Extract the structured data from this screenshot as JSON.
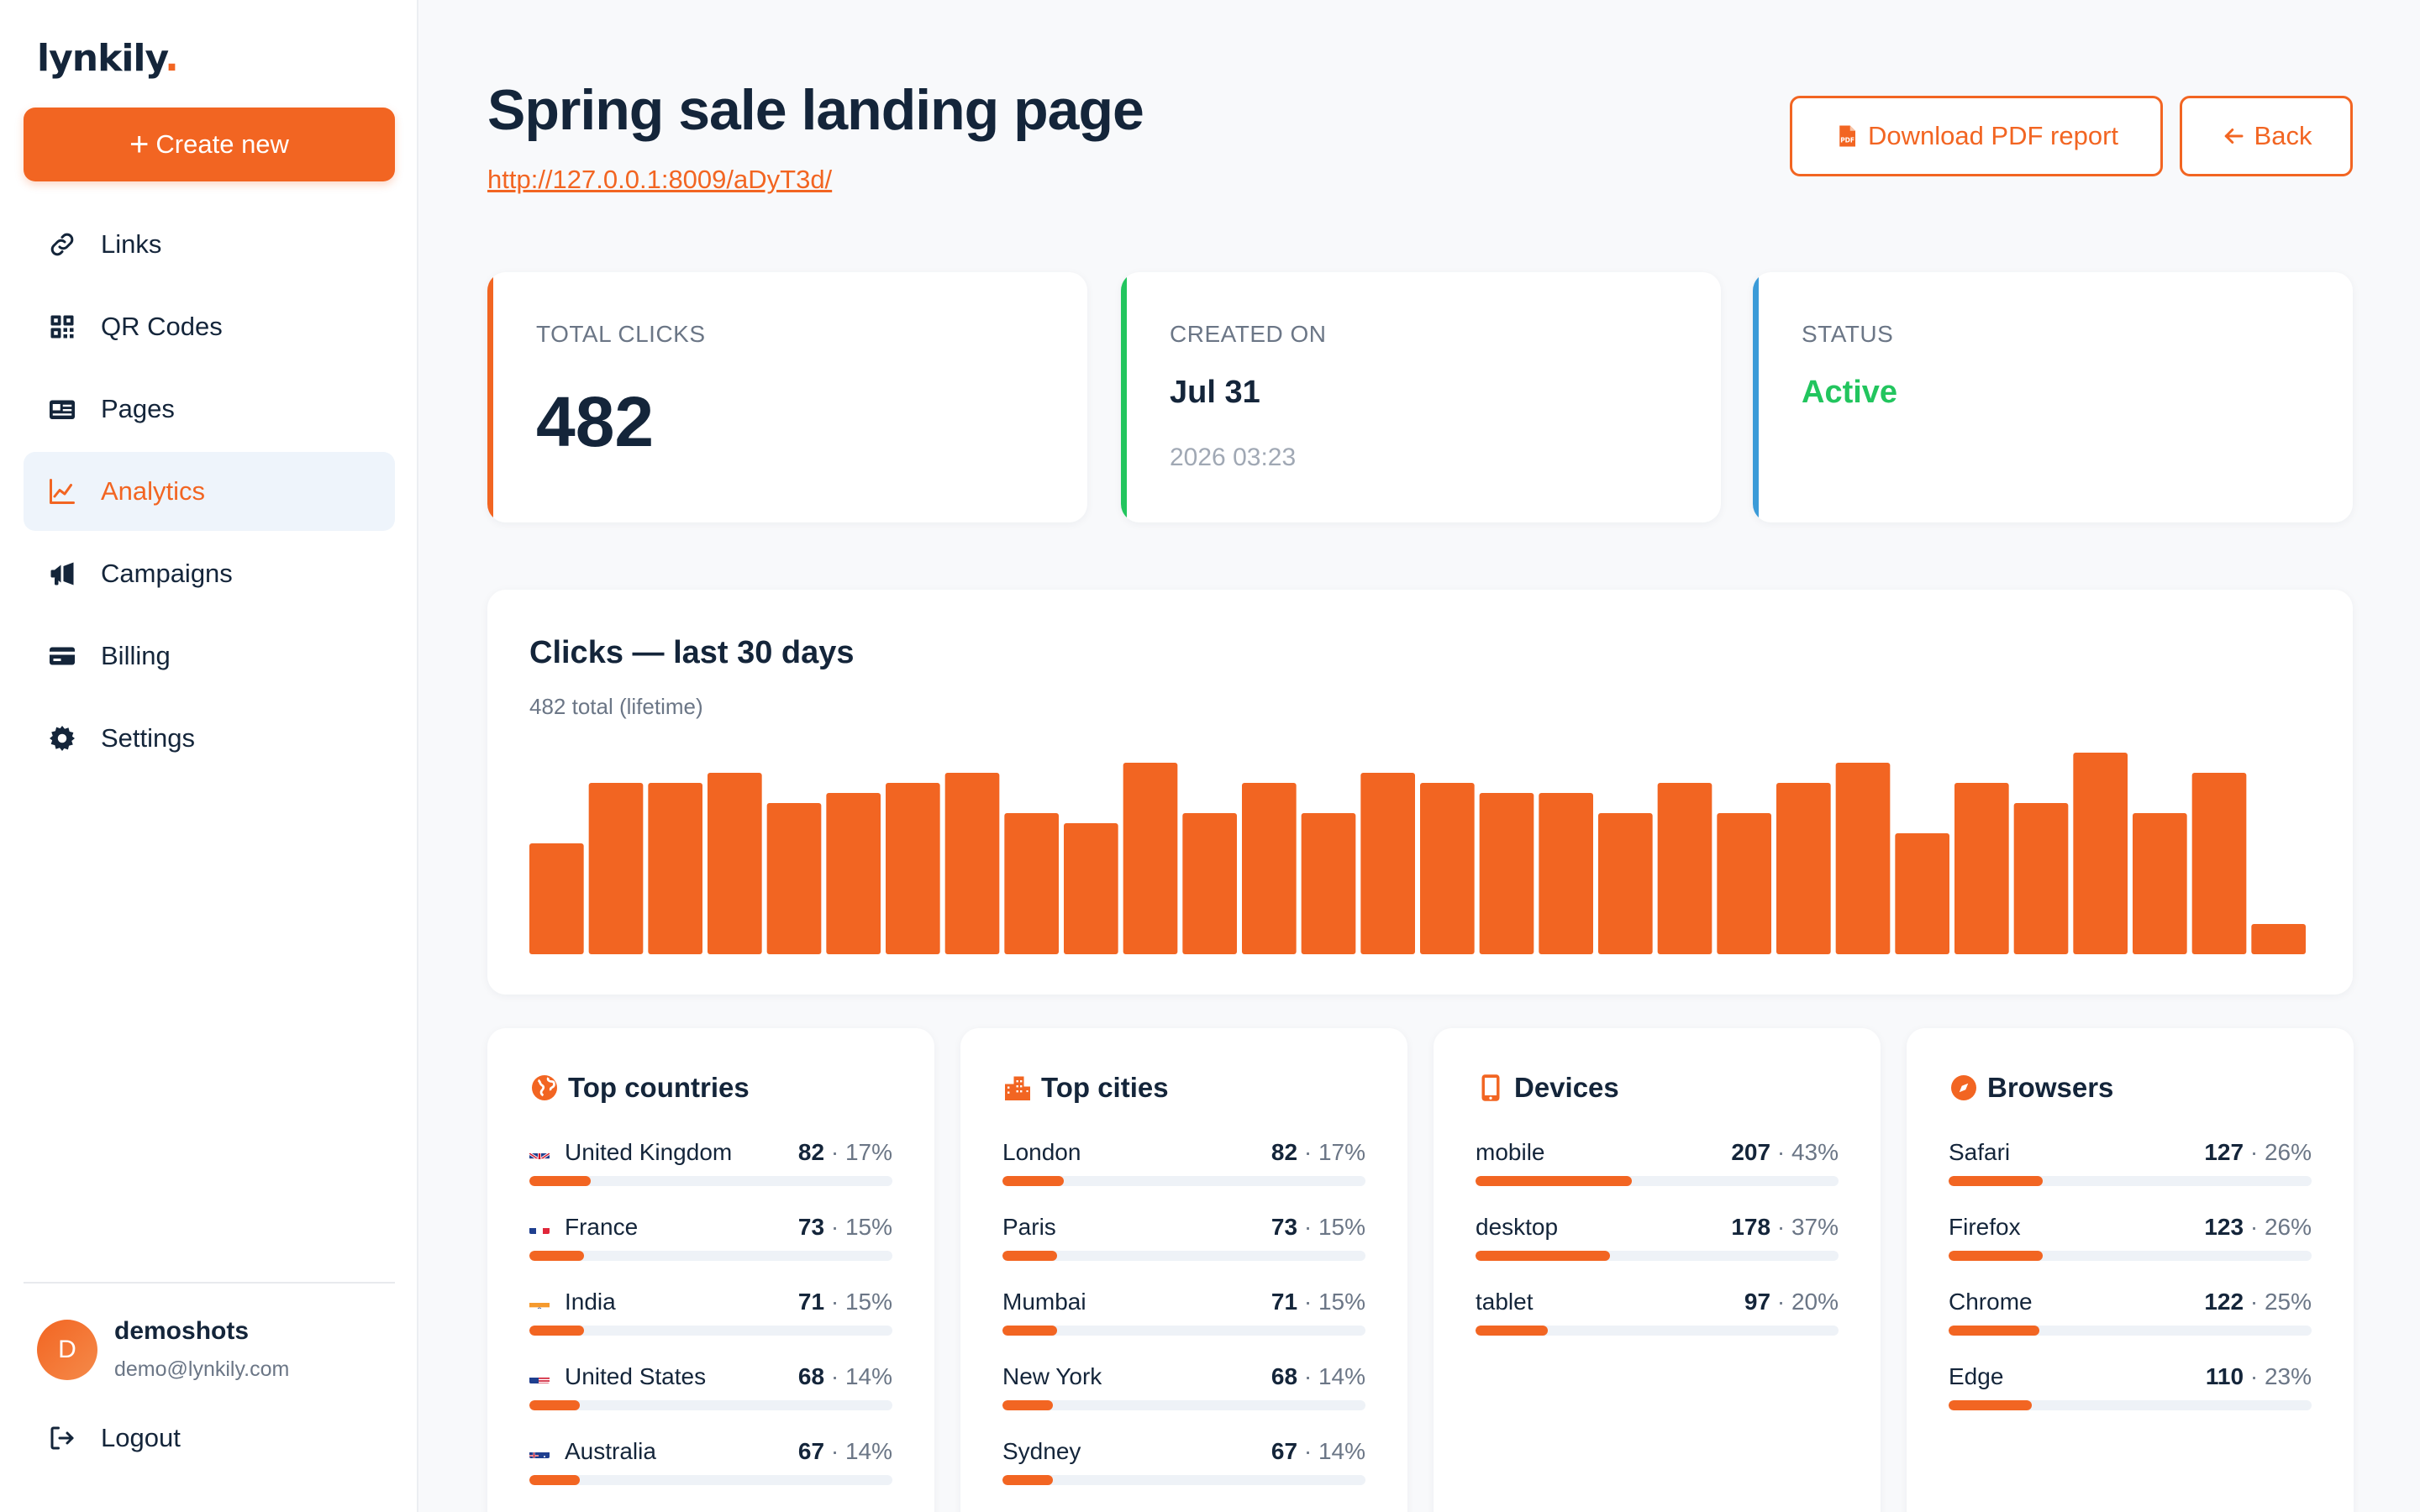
{
  "brand": {
    "name": "lynkily",
    "dot": "."
  },
  "sidebar": {
    "create_label": "Create new",
    "items": [
      {
        "label": "Links",
        "icon": "link-icon",
        "active": false
      },
      {
        "label": "QR Codes",
        "icon": "qr-code-icon",
        "active": false
      },
      {
        "label": "Pages",
        "icon": "pages-icon",
        "active": false
      },
      {
        "label": "Analytics",
        "icon": "analytics-chart-icon",
        "active": true
      },
      {
        "label": "Campaigns",
        "icon": "megaphone-icon",
        "active": false
      },
      {
        "label": "Billing",
        "icon": "credit-card-icon",
        "active": false
      },
      {
        "label": "Settings",
        "icon": "gear-icon",
        "active": false
      }
    ],
    "user": {
      "initial": "D",
      "name": "demoshots",
      "email": "demo@lynkily.com"
    },
    "logout_label": "Logout"
  },
  "header": {
    "title": "Spring sale landing page",
    "url": "http://127.0.0.1:8009/aDyT3d/",
    "pdf_label": "Download PDF report",
    "back_label": "Back"
  },
  "stats": {
    "total_clicks": {
      "label": "TOTAL CLICKS",
      "value": "482"
    },
    "created_on": {
      "label": "CREATED ON",
      "date": "Jul 31",
      "time": "2026 03:23"
    },
    "status": {
      "label": "STATUS",
      "value": "Active"
    }
  },
  "colors": {
    "accent": "#f26522",
    "green": "#22c55e",
    "blue": "#3b9bd8",
    "track": "#eef2f7"
  },
  "chart_data": {
    "type": "bar",
    "title": "Clicks — last 30 days",
    "subtitle": "482 total (lifetime)",
    "values": [
      11,
      17,
      17,
      18,
      15,
      16,
      17,
      18,
      14,
      13,
      19,
      14,
      17,
      14,
      18,
      17,
      16,
      16,
      14,
      17,
      14,
      17,
      19,
      12,
      17,
      15,
      20,
      14,
      18,
      3
    ],
    "ylim": [
      0,
      20
    ]
  },
  "breakdowns": [
    {
      "title": "Top countries",
      "icon": "globe-icon",
      "rows": [
        {
          "label": "United Kingdom",
          "flag": "uk",
          "count": "82",
          "pct": "· 17%",
          "fraction": 0.17
        },
        {
          "label": "France",
          "flag": "fr",
          "count": "73",
          "pct": "· 15%",
          "fraction": 0.15
        },
        {
          "label": "India",
          "flag": "in",
          "count": "71",
          "pct": "· 15%",
          "fraction": 0.15
        },
        {
          "label": "United States",
          "flag": "us",
          "count": "68",
          "pct": "· 14%",
          "fraction": 0.14
        },
        {
          "label": "Australia",
          "flag": "au",
          "count": "67",
          "pct": "· 14%",
          "fraction": 0.14
        }
      ]
    },
    {
      "title": "Top cities",
      "icon": "city-icon",
      "rows": [
        {
          "label": "London",
          "count": "82",
          "pct": "· 17%",
          "fraction": 0.17
        },
        {
          "label": "Paris",
          "count": "73",
          "pct": "· 15%",
          "fraction": 0.15
        },
        {
          "label": "Mumbai",
          "count": "71",
          "pct": "· 15%",
          "fraction": 0.15
        },
        {
          "label": "New York",
          "count": "68",
          "pct": "· 14%",
          "fraction": 0.14
        },
        {
          "label": "Sydney",
          "count": "67",
          "pct": "· 14%",
          "fraction": 0.14
        }
      ]
    },
    {
      "title": "Devices",
      "icon": "mobile-device-icon",
      "rows": [
        {
          "label": "mobile",
          "count": "207",
          "pct": "· 43%",
          "fraction": 0.43
        },
        {
          "label": "desktop",
          "count": "178",
          "pct": "· 37%",
          "fraction": 0.37
        },
        {
          "label": "tablet",
          "count": "97",
          "pct": "· 20%",
          "fraction": 0.2
        }
      ]
    },
    {
      "title": "Browsers",
      "icon": "compass-icon",
      "rows": [
        {
          "label": "Safari",
          "count": "127",
          "pct": "· 26%",
          "fraction": 0.26
        },
        {
          "label": "Firefox",
          "count": "123",
          "pct": "· 26%",
          "fraction": 0.26
        },
        {
          "label": "Chrome",
          "count": "122",
          "pct": "· 25%",
          "fraction": 0.25
        },
        {
          "label": "Edge",
          "count": "110",
          "pct": "· 23%",
          "fraction": 0.23
        }
      ]
    }
  ]
}
